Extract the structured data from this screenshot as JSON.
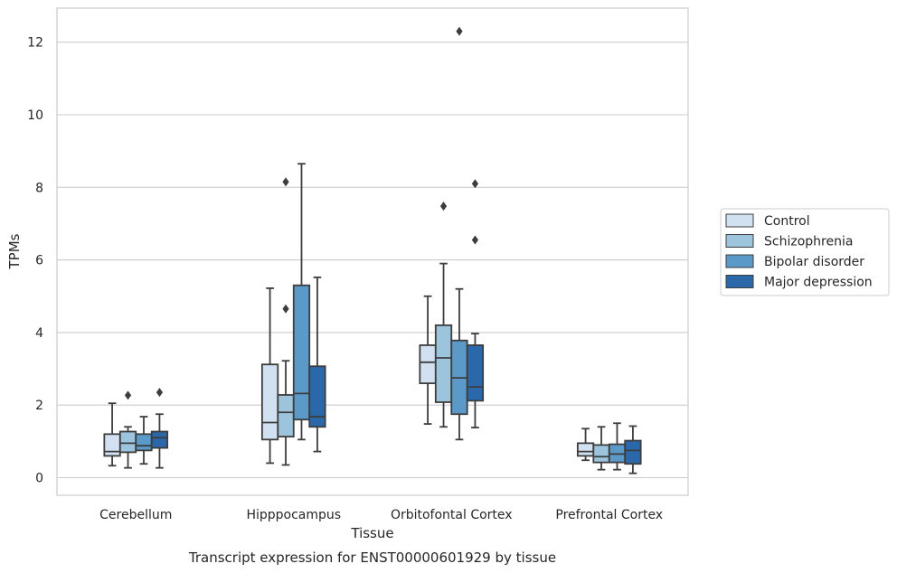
{
  "chart_data": {
    "type": "box",
    "title": "",
    "caption": "Transcript expression for ENST00000601929 by tissue",
    "xlabel": "Tissue",
    "ylabel": "TPMs",
    "ylim": [
      -0.45,
      12.95
    ],
    "yticks": [
      0,
      2,
      4,
      6,
      8,
      10,
      12
    ],
    "grid": "horizontal",
    "legend_position": "right",
    "categories": [
      "Cerebellum",
      "Hipppocampus",
      "Orbitofontal Cortex",
      "Prefrontal Cortex"
    ],
    "series": [
      {
        "name": "Control",
        "color": "#d2e1f1",
        "boxes": [
          {
            "whislo": 0.33,
            "q1": 0.6,
            "med": 0.72,
            "q3": 1.2,
            "whishi": 2.05,
            "fliers": []
          },
          {
            "whislo": 0.4,
            "q1": 1.05,
            "med": 1.52,
            "q3": 3.12,
            "whishi": 5.22,
            "fliers": []
          },
          {
            "whislo": 1.48,
            "q1": 2.6,
            "med": 3.18,
            "q3": 3.65,
            "whishi": 5.0,
            "fliers": []
          },
          {
            "whislo": 0.48,
            "q1": 0.6,
            "med": 0.72,
            "q3": 0.95,
            "whishi": 1.35,
            "fliers": []
          }
        ]
      },
      {
        "name": "Schizophrenia",
        "color": "#9dc4dd",
        "boxes": [
          {
            "whislo": 0.27,
            "q1": 0.7,
            "med": 0.95,
            "q3": 1.27,
            "whishi": 1.4,
            "fliers": [
              2.27
            ]
          },
          {
            "whislo": 0.35,
            "q1": 1.13,
            "med": 1.8,
            "q3": 2.28,
            "whishi": 3.22,
            "fliers": [
              4.65,
              8.15
            ]
          },
          {
            "whislo": 1.4,
            "q1": 2.08,
            "med": 3.3,
            "q3": 4.2,
            "whishi": 5.9,
            "fliers": [
              7.48
            ]
          },
          {
            "whislo": 0.22,
            "q1": 0.42,
            "med": 0.58,
            "q3": 0.9,
            "whishi": 1.4,
            "fliers": []
          }
        ]
      },
      {
        "name": "Bipolar disorder",
        "color": "#5b9ac8",
        "boxes": [
          {
            "whislo": 0.38,
            "q1": 0.75,
            "med": 0.88,
            "q3": 1.2,
            "whishi": 1.68,
            "fliers": []
          },
          {
            "whislo": 1.05,
            "q1": 1.6,
            "med": 2.32,
            "q3": 5.3,
            "whishi": 8.65,
            "fliers": []
          },
          {
            "whislo": 1.05,
            "q1": 1.75,
            "med": 2.75,
            "q3": 3.78,
            "whishi": 5.2,
            "fliers": [
              12.3
            ]
          },
          {
            "whislo": 0.22,
            "q1": 0.42,
            "med": 0.65,
            "q3": 0.92,
            "whishi": 1.5,
            "fliers": []
          }
        ]
      },
      {
        "name": "Major depression",
        "color": "#2a68a9",
        "boxes": [
          {
            "whislo": 0.27,
            "q1": 0.82,
            "med": 1.1,
            "q3": 1.27,
            "whishi": 1.75,
            "fliers": [
              2.35
            ]
          },
          {
            "whislo": 0.72,
            "q1": 1.4,
            "med": 1.68,
            "q3": 3.07,
            "whishi": 5.52,
            "fliers": []
          },
          {
            "whislo": 1.38,
            "q1": 2.12,
            "med": 2.5,
            "q3": 3.65,
            "whishi": 3.97,
            "fliers": [
              6.55,
              8.1
            ]
          },
          {
            "whislo": 0.12,
            "q1": 0.38,
            "med": 0.75,
            "q3": 1.02,
            "whishi": 1.42,
            "fliers": []
          }
        ]
      }
    ]
  }
}
